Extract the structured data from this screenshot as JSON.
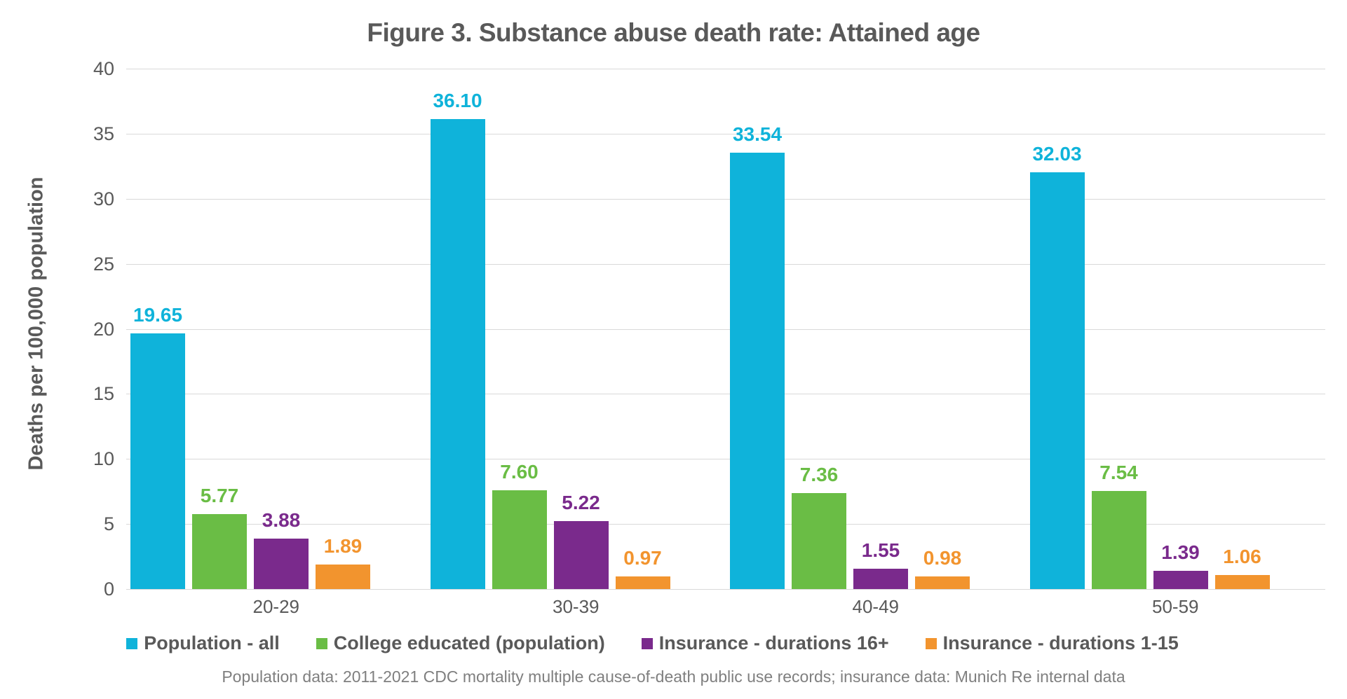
{
  "chart_data": {
    "type": "bar",
    "title": "Figure 3. Substance abuse death rate: Attained age",
    "xlabel": "",
    "ylabel": "Deaths per 100,000 population",
    "categories": [
      "20-29",
      "30-39",
      "40-49",
      "50-59"
    ],
    "series": [
      {
        "name": "Population - all",
        "color": "#0fb3da",
        "values": [
          19.65,
          36.1,
          33.54,
          32.03
        ]
      },
      {
        "name": "College educated (population)",
        "color": "#6abd45",
        "values": [
          5.77,
          7.6,
          7.36,
          7.54
        ]
      },
      {
        "name": "Insurance - durations 16+",
        "color": "#7a2a8c",
        "values": [
          3.88,
          5.22,
          1.55,
          1.39
        ]
      },
      {
        "name": "Insurance - durations 1-15",
        "color": "#f2942e",
        "values": [
          1.89,
          0.97,
          0.98,
          1.06
        ]
      }
    ],
    "ylim": [
      0,
      40
    ],
    "yticks": [
      0,
      5,
      10,
      15,
      20,
      25,
      30,
      35,
      40
    ],
    "grid": "horizontal",
    "legend_position": "bottom",
    "value_labels_decimals": 2,
    "colors": {
      "text": "#595959",
      "gridline": "#d9d9d9",
      "footnote": "#7f7f7f",
      "background": "#ffffff"
    }
  },
  "footnote": "Population data: 2011-2021 CDC mortality multiple cause-of-death public use records; insurance data: Munich Re internal data"
}
